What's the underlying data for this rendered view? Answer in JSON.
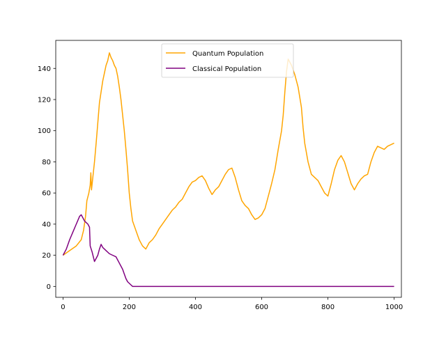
{
  "chart_data": {
    "type": "line",
    "title": "",
    "xlabel": "",
    "ylabel": "",
    "xlim": [
      -22,
      1022
    ],
    "ylim": [
      -7,
      158
    ],
    "x_ticks": [
      0,
      200,
      400,
      600,
      800,
      1000
    ],
    "y_ticks": [
      0,
      20,
      40,
      60,
      80,
      100,
      120,
      140
    ],
    "x_tick_labels": [
      "0",
      "200",
      "400",
      "600",
      "800",
      "1000"
    ],
    "y_tick_labels": [
      "0",
      "20",
      "40",
      "60",
      "80",
      "100",
      "120",
      "140"
    ],
    "grid": false,
    "legend_position": "top-center",
    "series": [
      {
        "name": "Quantum Population",
        "color": "#ffa500",
        "points": [
          [
            0,
            20
          ],
          [
            20,
            23
          ],
          [
            40,
            26
          ],
          [
            55,
            30
          ],
          [
            62,
            36
          ],
          [
            68,
            45
          ],
          [
            72,
            55
          ],
          [
            78,
            60
          ],
          [
            82,
            65
          ],
          [
            84,
            73
          ],
          [
            86,
            62
          ],
          [
            90,
            70
          ],
          [
            95,
            80
          ],
          [
            100,
            92
          ],
          [
            105,
            105
          ],
          [
            110,
            118
          ],
          [
            115,
            125
          ],
          [
            120,
            132
          ],
          [
            125,
            137
          ],
          [
            130,
            142
          ],
          [
            135,
            145
          ],
          [
            140,
            150
          ],
          [
            145,
            147
          ],
          [
            150,
            145
          ],
          [
            155,
            142
          ],
          [
            160,
            140
          ],
          [
            165,
            135
          ],
          [
            170,
            128
          ],
          [
            175,
            120
          ],
          [
            180,
            110
          ],
          [
            185,
            100
          ],
          [
            190,
            88
          ],
          [
            195,
            75
          ],
          [
            200,
            60
          ],
          [
            205,
            50
          ],
          [
            210,
            42
          ],
          [
            220,
            36
          ],
          [
            230,
            30
          ],
          [
            240,
            26
          ],
          [
            250,
            24
          ],
          [
            260,
            28
          ],
          [
            270,
            30
          ],
          [
            280,
            33
          ],
          [
            290,
            37
          ],
          [
            300,
            40
          ],
          [
            310,
            43
          ],
          [
            320,
            46
          ],
          [
            330,
            49
          ],
          [
            340,
            51
          ],
          [
            350,
            54
          ],
          [
            360,
            56
          ],
          [
            370,
            60
          ],
          [
            380,
            64
          ],
          [
            390,
            67
          ],
          [
            400,
            68
          ],
          [
            410,
            70
          ],
          [
            420,
            71
          ],
          [
            430,
            68
          ],
          [
            440,
            63
          ],
          [
            450,
            59
          ],
          [
            460,
            62
          ],
          [
            470,
            64
          ],
          [
            480,
            68
          ],
          [
            490,
            72
          ],
          [
            500,
            75
          ],
          [
            510,
            76
          ],
          [
            520,
            70
          ],
          [
            530,
            62
          ],
          [
            540,
            55
          ],
          [
            550,
            52
          ],
          [
            560,
            50
          ],
          [
            570,
            46
          ],
          [
            580,
            43
          ],
          [
            590,
            44
          ],
          [
            600,
            46
          ],
          [
            610,
            50
          ],
          [
            620,
            58
          ],
          [
            630,
            66
          ],
          [
            640,
            75
          ],
          [
            650,
            88
          ],
          [
            660,
            100
          ],
          [
            665,
            110
          ],
          [
            670,
            125
          ],
          [
            675,
            138
          ],
          [
            680,
            146
          ],
          [
            690,
            142
          ],
          [
            700,
            136
          ],
          [
            710,
            128
          ],
          [
            720,
            115
          ],
          [
            725,
            102
          ],
          [
            730,
            92
          ],
          [
            740,
            80
          ],
          [
            750,
            72
          ],
          [
            760,
            70
          ],
          [
            770,
            68
          ],
          [
            780,
            64
          ],
          [
            790,
            60
          ],
          [
            800,
            58
          ],
          [
            810,
            66
          ],
          [
            820,
            75
          ],
          [
            830,
            81
          ],
          [
            840,
            84
          ],
          [
            850,
            80
          ],
          [
            860,
            73
          ],
          [
            870,
            66
          ],
          [
            880,
            62
          ],
          [
            890,
            66
          ],
          [
            900,
            69
          ],
          [
            910,
            71
          ],
          [
            920,
            72
          ],
          [
            930,
            80
          ],
          [
            940,
            86
          ],
          [
            950,
            90
          ],
          [
            960,
            89
          ],
          [
            970,
            88
          ],
          [
            980,
            90
          ],
          [
            990,
            91
          ],
          [
            1000,
            92
          ]
        ]
      },
      {
        "name": "Classical Population",
        "color": "#800080",
        "points": [
          [
            0,
            20
          ],
          [
            10,
            24
          ],
          [
            20,
            30
          ],
          [
            30,
            35
          ],
          [
            40,
            40
          ],
          [
            50,
            45
          ],
          [
            55,
            46
          ],
          [
            60,
            44
          ],
          [
            65,
            42
          ],
          [
            70,
            41
          ],
          [
            75,
            40
          ],
          [
            80,
            38
          ],
          [
            82,
            26
          ],
          [
            88,
            22
          ],
          [
            95,
            16
          ],
          [
            100,
            18
          ],
          [
            105,
            20
          ],
          [
            110,
            24
          ],
          [
            115,
            27
          ],
          [
            120,
            25
          ],
          [
            125,
            24
          ],
          [
            130,
            23
          ],
          [
            140,
            21
          ],
          [
            150,
            20
          ],
          [
            160,
            19
          ],
          [
            170,
            15
          ],
          [
            180,
            11
          ],
          [
            185,
            8
          ],
          [
            190,
            5
          ],
          [
            195,
            3
          ],
          [
            200,
            2
          ],
          [
            205,
            1
          ],
          [
            210,
            0
          ],
          [
            250,
            0
          ],
          [
            300,
            0
          ],
          [
            400,
            0
          ],
          [
            500,
            0
          ],
          [
            600,
            0
          ],
          [
            700,
            0
          ],
          [
            800,
            0
          ],
          [
            900,
            0
          ],
          [
            1000,
            0
          ]
        ]
      }
    ]
  }
}
